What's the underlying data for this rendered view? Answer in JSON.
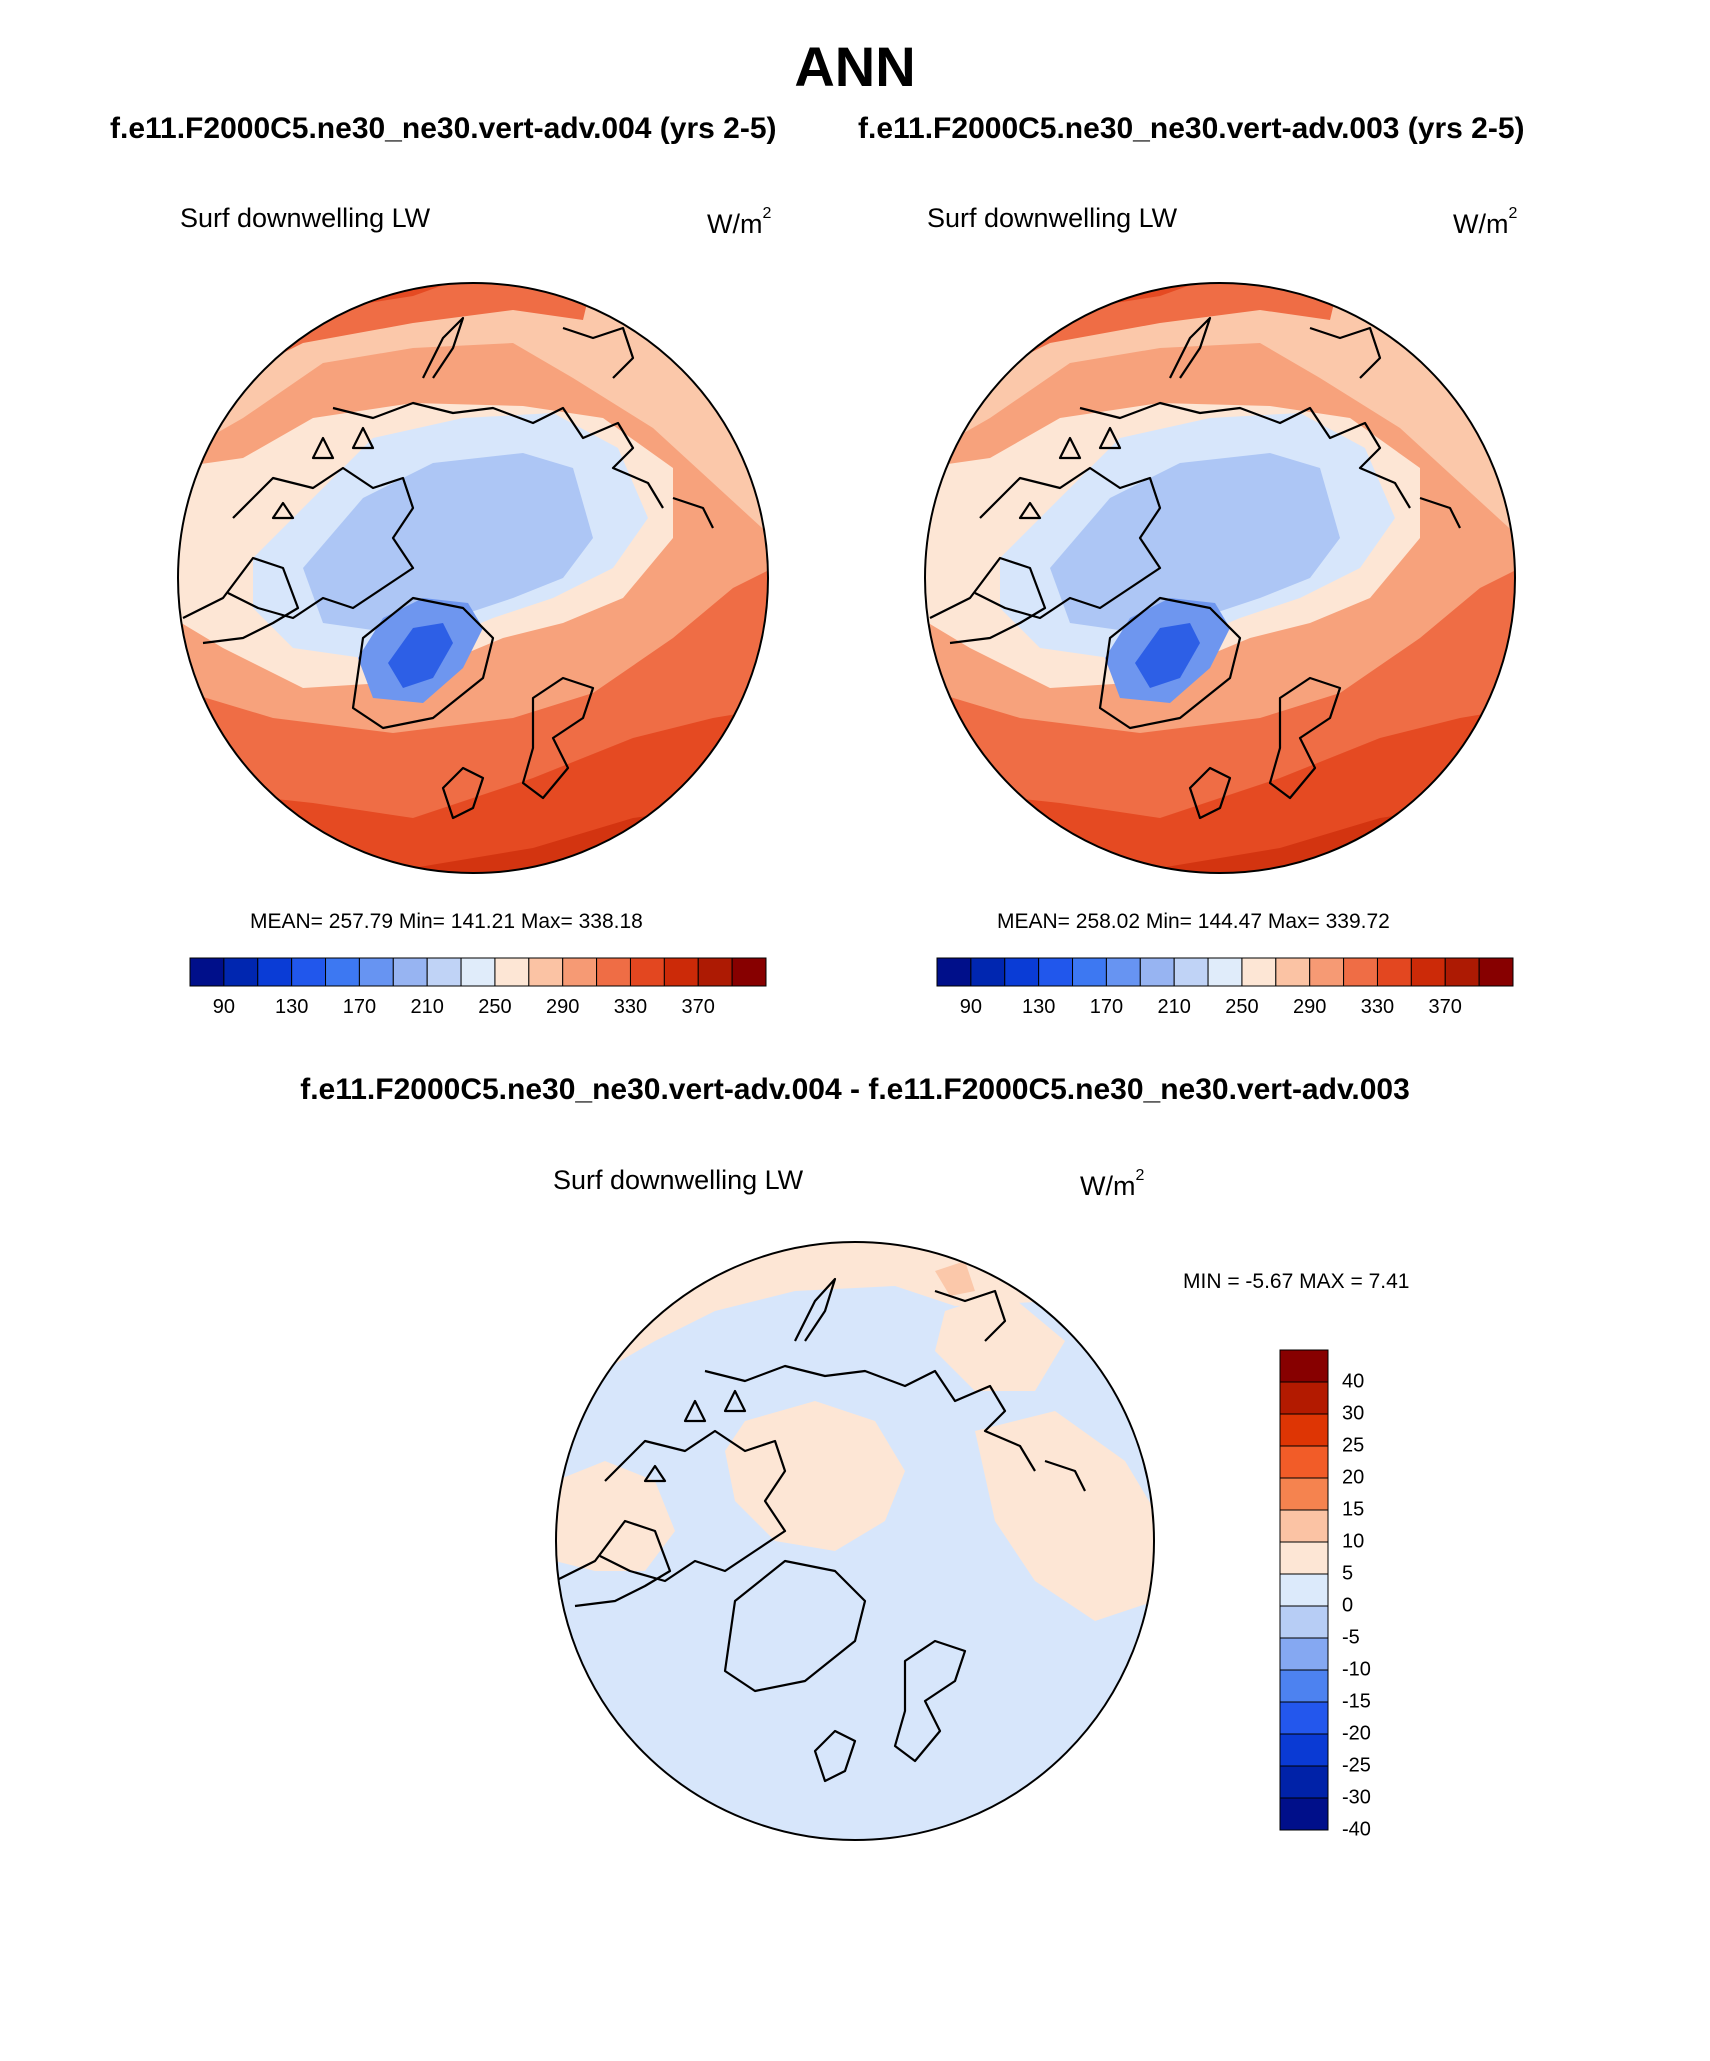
{
  "title": "ANN",
  "case_titles": [
    "f.e11.F2000C5.ne30_ne30.vert-adv.004 (yrs 2-5)",
    "f.e11.F2000C5.ne30_ne30.vert-adv.003 (yrs 2-5)"
  ],
  "diff_title": "f.e11.F2000C5.ne30_ne30.vert-adv.004 - f.e11.F2000C5.ne30_ne30.vert-adv.003",
  "panels": [
    {
      "variable": "Surf downwelling LW",
      "units": "W/m",
      "units_exp": "2",
      "stats": "MEAN= 257.79  Min= 141.21  Max= 338.18"
    },
    {
      "variable": "Surf downwelling LW",
      "units": "W/m",
      "units_exp": "2",
      "stats": "MEAN= 258.02  Min= 144.47  Max= 339.72"
    },
    {
      "variable": "Surf downwelling LW",
      "units": "W/m",
      "units_exp": "2",
      "stats": "MIN =  -5.67 MAX =   7.41"
    }
  ],
  "colorbar_abs": {
    "tick_labels": [
      "90",
      "130",
      "170",
      "210",
      "250",
      "290",
      "330",
      "370"
    ],
    "colors": [
      "#000f8a",
      "#0026b0",
      "#0a3cd6",
      "#2157ec",
      "#3d78f2",
      "#6794f2",
      "#97b4f2",
      "#c0d3f6",
      "#e0ecfa",
      "#fde6d5",
      "#fbc3a4",
      "#f69a74",
      "#ef6d45",
      "#e34720",
      "#cc2a08",
      "#ad1a03",
      "#870000"
    ]
  },
  "colorbar_diff": {
    "tick_labels": [
      "40",
      "30",
      "25",
      "20",
      "15",
      "10",
      "5",
      "0",
      "-5",
      "-10",
      "-15",
      "-20",
      "-25",
      "-30",
      "-40"
    ],
    "colors": [
      "#870000",
      "#b31a00",
      "#de3504",
      "#f25c28",
      "#f5834f",
      "#fbc3a4",
      "#fde6d5",
      "#dceafb",
      "#b7cdf5",
      "#85a8f2",
      "#4d82f0",
      "#2357ed",
      "#0a3ad4",
      "#0022a8",
      "#000f8a"
    ]
  },
  "map_colors": {
    "coast": "#000000",
    "deep_blue": "#2d5fe6",
    "mid_blue": "#6e96ef",
    "light_blue": "#adc6f5",
    "pale_blue": "#d7e6fb",
    "cream": "#fde6d5",
    "peach": "#fbc8aa",
    "salmon": "#f7a27c",
    "orange": "#ef6d45",
    "red_orange": "#e54a22",
    "red": "#d33410"
  }
}
